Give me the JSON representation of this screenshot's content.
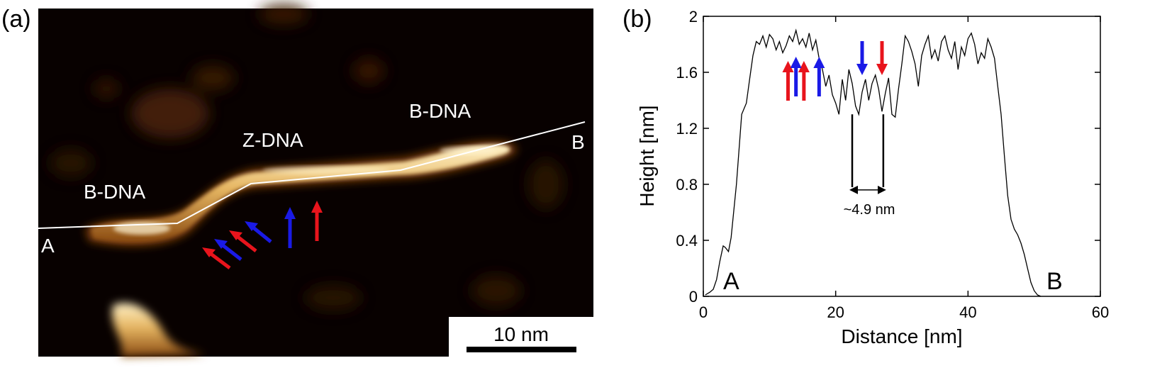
{
  "panel_a": {
    "panel_label": "(a)",
    "labels": {
      "b_dna_left": "B-DNA",
      "z_dna": "Z-DNA",
      "b_dna_right": "B-DNA",
      "end_a": "A",
      "end_b": "B"
    },
    "scale_bar_label": "10 nm",
    "arrow_colors": {
      "red": "#e8141c",
      "blue": "#1a1ae6"
    }
  },
  "panel_b": {
    "panel_label": "(b)",
    "end_a": "A",
    "end_b": "B",
    "spacing_label": "~4.9 nm"
  },
  "chart_data": {
    "type": "line",
    "xlabel": "Distance [nm]",
    "ylabel": "Height [nm]",
    "xlim": [
      0,
      60
    ],
    "ylim": [
      0,
      2
    ],
    "xticks": [
      "0",
      "20",
      "40",
      "60"
    ],
    "yticks": [
      "0",
      "0.4",
      "0.8",
      "1.2",
      "1.6",
      "2"
    ],
    "series": [
      {
        "x": [
          0.3,
          1.0,
          1.5,
          2.0,
          2.5,
          3.0,
          3.3,
          3.8,
          4.2,
          5.0,
          5.8,
          6.5,
          7.0,
          7.5,
          8.0,
          8.5,
          9.0,
          9.5,
          10.0,
          10.5,
          11.0,
          11.5,
          12.0,
          12.5,
          13.0,
          13.5,
          14.0,
          14.5,
          15.0,
          15.5,
          16.0,
          16.5,
          17.0,
          17.5,
          18.0,
          18.5,
          19.0,
          19.5,
          20.0,
          20.5,
          21.0,
          21.5,
          22.0,
          22.5,
          23.0,
          23.5,
          24.0,
          24.5,
          25.0,
          25.5,
          26.0,
          26.5,
          27.0,
          27.5,
          28.0,
          28.5,
          29.0,
          29.5,
          30.0,
          30.5,
          31.0,
          31.5,
          32.0,
          32.5,
          33.0,
          33.5,
          34.0,
          34.5,
          35.0,
          35.5,
          36.0,
          36.5,
          37.0,
          37.5,
          38.0,
          38.5,
          39.0,
          39.5,
          40.0,
          40.5,
          41.0,
          41.5,
          42.0,
          42.5,
          43.0,
          43.5,
          44.0,
          44.5,
          45.0,
          45.5,
          46.0,
          46.5,
          47.0,
          47.5,
          48.0,
          48.5,
          49.0,
          49.5,
          50.0,
          50.5,
          51.0
        ],
        "y": [
          0.01,
          0.03,
          0.05,
          0.12,
          0.25,
          0.36,
          0.35,
          0.32,
          0.42,
          0.8,
          1.3,
          1.38,
          1.55,
          1.72,
          1.82,
          1.8,
          1.86,
          1.78,
          1.87,
          1.84,
          1.76,
          1.82,
          1.74,
          1.79,
          1.86,
          1.82,
          1.9,
          1.8,
          1.84,
          1.78,
          1.88,
          1.76,
          1.83,
          1.7,
          1.62,
          1.5,
          1.58,
          1.44,
          1.38,
          1.3,
          1.55,
          1.4,
          1.62,
          1.52,
          1.36,
          1.3,
          1.46,
          1.55,
          1.4,
          1.52,
          1.58,
          1.48,
          1.32,
          1.45,
          1.56,
          1.3,
          1.28,
          1.48,
          1.66,
          1.86,
          1.82,
          1.75,
          1.66,
          1.5,
          1.72,
          1.8,
          1.86,
          1.7,
          1.76,
          1.68,
          1.82,
          1.86,
          1.76,
          1.7,
          1.82,
          1.62,
          1.78,
          1.72,
          1.84,
          1.88,
          1.8,
          1.66,
          1.74,
          1.7,
          1.84,
          1.78,
          1.7,
          1.5,
          1.3,
          1.0,
          0.72,
          0.55,
          0.48,
          0.44,
          0.38,
          0.3,
          0.2,
          0.1,
          0.04,
          0.01,
          0.0
        ]
      }
    ],
    "annotations": {
      "red_up_arrows_x": [
        12.8,
        15.2
      ],
      "blue_up_arrows_x": [
        14.0,
        17.5
      ],
      "blue_down_arrow_x": 24.0,
      "red_down_arrow_x": 27.0,
      "spacing_markers_x": [
        22.5,
        27.2
      ],
      "spacing_marker_range_y": [
        0.78,
        1.3
      ]
    }
  }
}
